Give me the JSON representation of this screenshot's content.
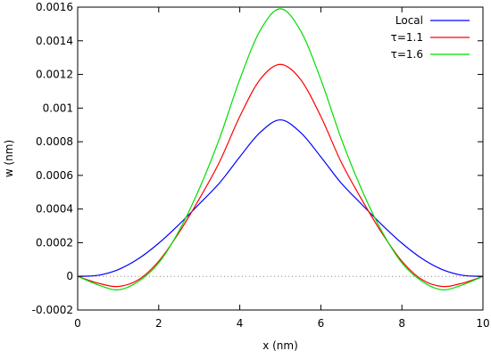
{
  "chart_data": {
    "type": "line",
    "title": "",
    "xlabel": "x (nm)",
    "ylabel": "w (nm)",
    "xlim": [
      0,
      10
    ],
    "ylim": [
      -0.0002,
      0.0016
    ],
    "xticks": [
      "0",
      "2",
      "4",
      "6",
      "8",
      "10"
    ],
    "yticks": [
      "-0.0002",
      "0",
      "0.0002",
      "0.0004",
      "0.0006",
      "0.0008",
      "0.001",
      "0.0012",
      "0.0014",
      "0.0016"
    ],
    "grid": false,
    "legend_position": "top-right",
    "zero_line": true,
    "x": [
      0,
      0.5,
      1,
      1.5,
      2,
      2.5,
      3,
      3.5,
      4,
      4.5,
      5,
      5.5,
      6,
      6.5,
      7,
      7.5,
      8,
      8.5,
      9,
      9.5,
      10
    ],
    "series": [
      {
        "name": "Local",
        "color": "#0000ff",
        "values": [
          0,
          6e-06,
          4e-05,
          0.000105,
          0.000197,
          0.000308,
          0.00043,
          0.000555,
          0.00071,
          0.000855,
          0.00093,
          0.000855,
          0.00071,
          0.000555,
          0.00043,
          0.000308,
          0.000197,
          0.000105,
          4e-05,
          6e-06,
          0
        ]
      },
      {
        "name": "τ=1.1",
        "color": "#ff0000",
        "values": [
          0,
          -4e-05,
          -6e-05,
          -2e-05,
          9e-05,
          0.00026,
          0.00046,
          0.00068,
          0.00095,
          0.00117,
          0.00126,
          0.00117,
          0.00095,
          0.00068,
          0.00046,
          0.00026,
          9e-05,
          -2e-05,
          -6e-05,
          -4e-05,
          0
        ]
      },
      {
        "name": "τ=1.6",
        "color": "#00dd00",
        "values": [
          0,
          -5e-05,
          -8e-05,
          -3e-05,
          8e-05,
          0.00027,
          0.00052,
          0.00082,
          0.00117,
          0.00146,
          0.00159,
          0.00146,
          0.00117,
          0.00082,
          0.00052,
          0.00027,
          8e-05,
          -3e-05,
          -8e-05,
          -5e-05,
          0
        ]
      }
    ]
  }
}
